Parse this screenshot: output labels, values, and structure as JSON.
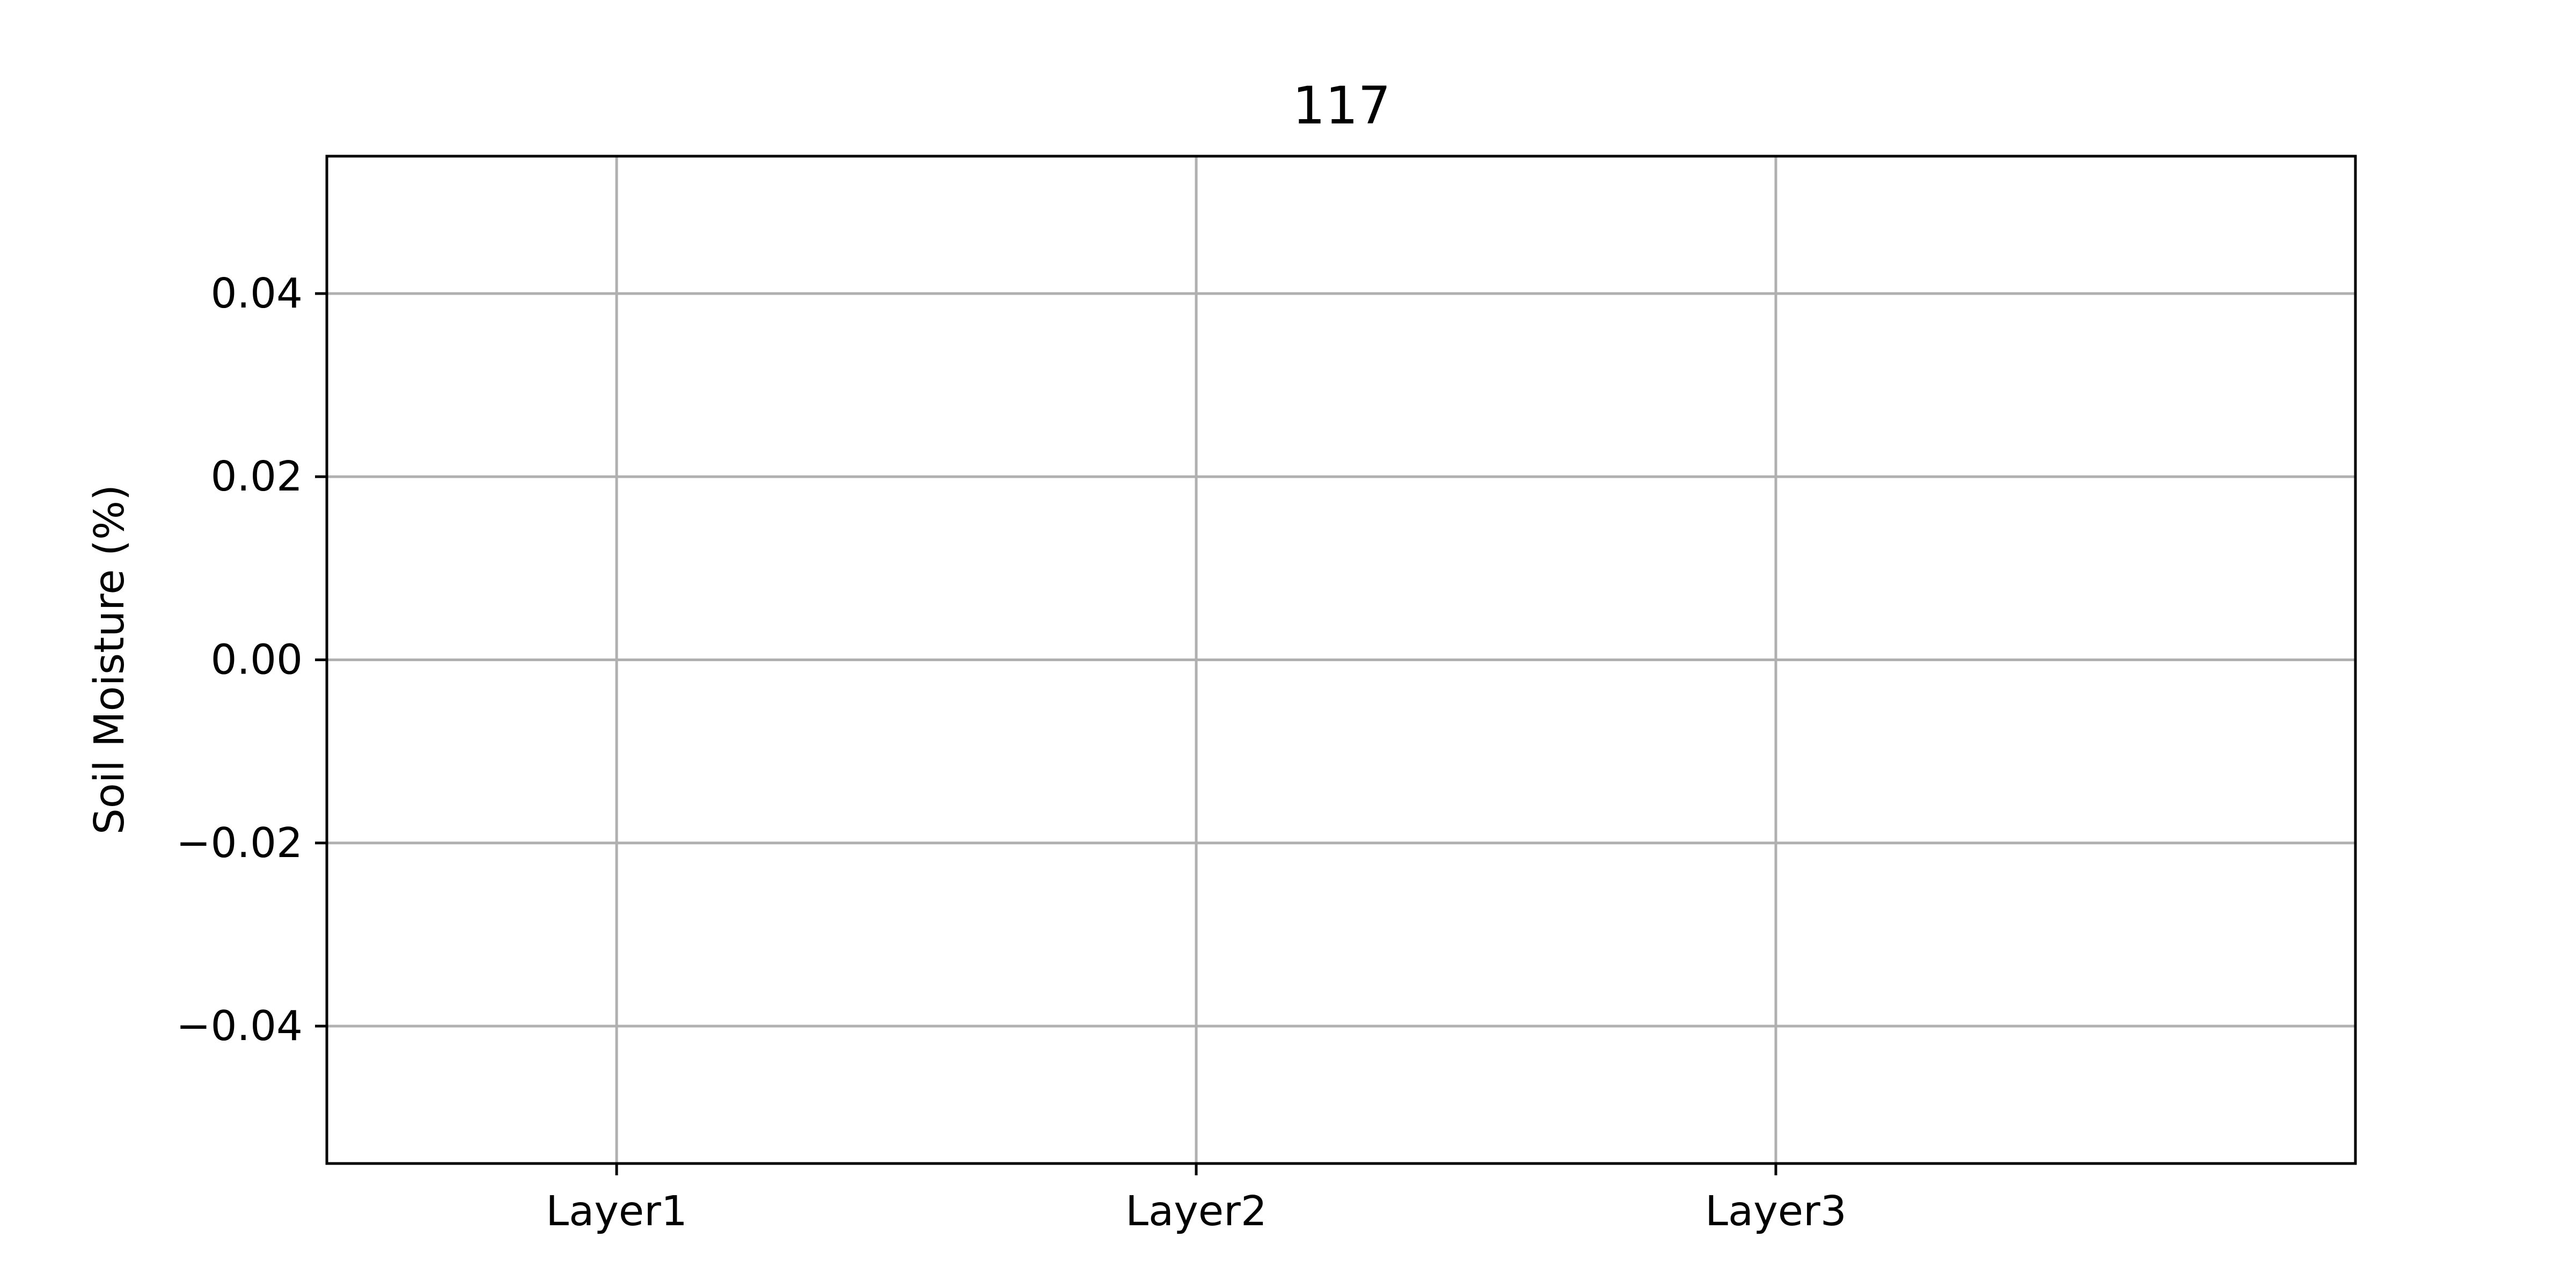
{
  "chart_data": {
    "type": "bar",
    "title": "117",
    "xlabel": "",
    "ylabel": "Soil Moisture (%)",
    "categories": [
      "Layer1",
      "Layer2",
      "Layer3"
    ],
    "series": [
      {
        "values": [
          null,
          null,
          null
        ]
      }
    ],
    "ylim": [
      -0.055,
      0.055
    ],
    "yticks": [
      -0.04,
      -0.02,
      0.0,
      0.02,
      0.04
    ],
    "ytick_labels": [
      "−0.04",
      "−0.02",
      "0.00",
      "0.02",
      "0.04"
    ],
    "grid": true,
    "legend": "none"
  }
}
